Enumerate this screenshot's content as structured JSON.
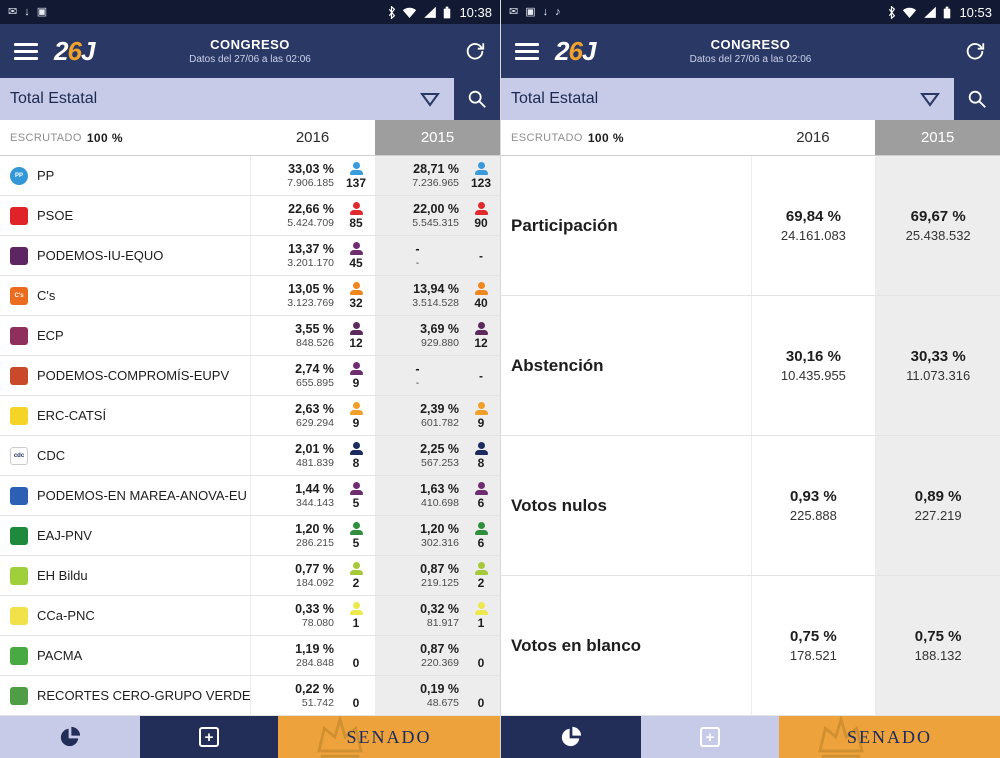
{
  "colors": {
    "statusbar": "#121a33",
    "appbar": "#2a3865",
    "lavender": "#c7cbe8",
    "header_2015": "#9e9e9e",
    "col_2015_bg": "#ededed",
    "senado_orange": "#eda23b",
    "nav_navy": "#222e57"
  },
  "left": {
    "statusbar": {
      "time": "10:38",
      "left_icons": [
        "message-icon",
        "download-icon",
        "screenshot-icon"
      ],
      "right_icons": [
        "bluetooth-icon",
        "wifi-icon",
        "signal-icon",
        "battery-icon"
      ]
    },
    "appbar": {
      "logo_2": "2",
      "logo_6": "6",
      "logo_j": "J",
      "title": "CONGRESO",
      "subtitle": "Datos del 27/06 a las 02:06"
    },
    "filter": {
      "value": "Total Estatal"
    },
    "table": {
      "escrutado_label": "ESCRUTADO",
      "escrutado_value": "100 %",
      "col_2016": "2016",
      "col_2015": "2015",
      "rows": [
        {
          "name": "PP",
          "party_icon": "pp-logo-icon",
          "logo_color": "#3398d8",
          "logo_text": "PP",
          "logo_shape": "circle",
          "seat_color": "#3a9bdc",
          "y2016": {
            "pct": "33,03 %",
            "votes": "7.906.185",
            "seats": "137"
          },
          "y2015": {
            "pct": "28,71 %",
            "votes": "7.236.965",
            "seats": "123"
          }
        },
        {
          "name": "PSOE",
          "party_icon": "psoe-logo-icon",
          "logo_color": "#e02329",
          "logo_text": "",
          "logo_shape": "square",
          "seat_color": "#e02a2e",
          "y2016": {
            "pct": "22,66 %",
            "votes": "5.424.709",
            "seats": "85"
          },
          "y2015": {
            "pct": "22,00 %",
            "votes": "5.545.315",
            "seats": "90"
          }
        },
        {
          "name": "PODEMOS-IU-EQUO",
          "party_icon": "podemos-iu-equo-logo-icon",
          "logo_color": "#5d2663",
          "logo_text": "",
          "logo_shape": "square",
          "seat_color": "#6e2d6e",
          "y2016": {
            "pct": "13,37 %",
            "votes": "3.201.170",
            "seats": "45"
          },
          "y2015": {
            "pct": "-",
            "votes": "-",
            "seats": "-"
          }
        },
        {
          "name": "C's",
          "party_icon": "ciudadanos-logo-icon",
          "logo_color": "#eb6c1e",
          "logo_text": "C's",
          "logo_shape": "square",
          "seat_color": "#f0861e",
          "y2016": {
            "pct": "13,05 %",
            "votes": "3.123.769",
            "seats": "32"
          },
          "y2015": {
            "pct": "13,94 %",
            "votes": "3.514.528",
            "seats": "40"
          }
        },
        {
          "name": "ECP",
          "party_icon": "ecp-logo-icon",
          "logo_color": "#8e2f5c",
          "logo_text": "",
          "logo_shape": "square",
          "seat_color": "#5c2a5c",
          "y2016": {
            "pct": "3,55 %",
            "votes": "848.526",
            "seats": "12"
          },
          "y2015": {
            "pct": "3,69 %",
            "votes": "929.880",
            "seats": "12"
          }
        },
        {
          "name": "PODEMOS-COMPROMÍS-EUPV",
          "party_icon": "podemos-compromis-eupv-logo-icon",
          "logo_color": "#c94a2a",
          "logo_text": "",
          "logo_shape": "square",
          "seat_color": "#6e2d6e",
          "y2016": {
            "pct": "2,74 %",
            "votes": "655.895",
            "seats": "9"
          },
          "y2015": {
            "pct": "-",
            "votes": "-",
            "seats": "-"
          }
        },
        {
          "name": "ERC-CATSÍ",
          "party_icon": "erc-catsi-logo-icon",
          "logo_color": "#f5d428",
          "logo_text": "",
          "logo_shape": "square",
          "seat_color": "#f0a028",
          "y2016": {
            "pct": "2,63 %",
            "votes": "629.294",
            "seats": "9"
          },
          "y2015": {
            "pct": "2,39 %",
            "votes": "601.782",
            "seats": "9"
          }
        },
        {
          "name": "CDC",
          "party_icon": "cdc-logo-icon",
          "logo_color": "#ffffff",
          "logo_text": "cdc",
          "logo_text_color": "#1b2b5e",
          "logo_border": "#cccccc",
          "logo_shape": "square",
          "seat_color": "#1b2b5e",
          "y2016": {
            "pct": "2,01 %",
            "votes": "481.839",
            "seats": "8"
          },
          "y2015": {
            "pct": "2,25 %",
            "votes": "567.253",
            "seats": "8"
          }
        },
        {
          "name": "PODEMOS-EN MAREA-ANOVA-EU",
          "party_icon": "podemos-en-marea-anova-eu-logo-icon",
          "logo_color": "#2d5fb5",
          "logo_text": "",
          "logo_shape": "square",
          "seat_color": "#6e2d6e",
          "y2016": {
            "pct": "1,44 %",
            "votes": "344.143",
            "seats": "5"
          },
          "y2015": {
            "pct": "1,63 %",
            "votes": "410.698",
            "seats": "6"
          }
        },
        {
          "name": "EAJ-PNV",
          "party_icon": "eaj-pnv-logo-icon",
          "logo_color": "#1f8a3b",
          "logo_text": "",
          "logo_shape": "square",
          "seat_color": "#2f8f3c",
          "y2016": {
            "pct": "1,20 %",
            "votes": "286.215",
            "seats": "5"
          },
          "y2015": {
            "pct": "1,20 %",
            "votes": "302.316",
            "seats": "6"
          }
        },
        {
          "name": "EH Bildu",
          "party_icon": "eh-bildu-logo-icon",
          "logo_color": "#9fcf3a",
          "logo_text": "",
          "logo_shape": "square",
          "seat_color": "#a6c93a",
          "y2016": {
            "pct": "0,77 %",
            "votes": "184.092",
            "seats": "2"
          },
          "y2015": {
            "pct": "0,87 %",
            "votes": "219.125",
            "seats": "2"
          }
        },
        {
          "name": "CCa-PNC",
          "party_icon": "cca-pnc-logo-icon",
          "logo_color": "#f2e24a",
          "logo_text": "",
          "logo_shape": "square",
          "seat_color": "#ece84e",
          "y2016": {
            "pct": "0,33 %",
            "votes": "78.080",
            "seats": "1"
          },
          "y2015": {
            "pct": "0,32 %",
            "votes": "81.917",
            "seats": "1"
          }
        },
        {
          "name": "PACMA",
          "party_icon": "pacma-logo-icon",
          "logo_color": "#49a942",
          "logo_text": "",
          "logo_shape": "square",
          "seat_color": "#999999",
          "y2016": {
            "pct": "1,19 %",
            "votes": "284.848",
            "seats": "0"
          },
          "y2015": {
            "pct": "0,87 %",
            "votes": "220.369",
            "seats": "0"
          }
        },
        {
          "name": "RECORTES CERO-GRUPO VERDE",
          "party_icon": "recortes-cero-grupo-verde-logo-icon",
          "logo_color": "#4f9e45",
          "logo_text": "",
          "logo_shape": "square",
          "seat_color": "#999999",
          "y2016": {
            "pct": "0,22 %",
            "votes": "51.742",
            "seats": "0"
          },
          "y2015": {
            "pct": "0,19 %",
            "votes": "48.675",
            "seats": "0"
          }
        }
      ]
    },
    "bottomnav": {
      "senado": "SENADO",
      "active": "pie"
    }
  },
  "right": {
    "statusbar": {
      "time": "10:53",
      "left_icons": [
        "message-icon",
        "screenshot-icon",
        "download-icon",
        "music-icon"
      ],
      "right_icons": [
        "bluetooth-icon",
        "wifi-icon",
        "signal-icon",
        "battery-icon"
      ]
    },
    "appbar": {
      "logo_2": "2",
      "logo_6": "6",
      "logo_j": "J",
      "title": "CONGRESO",
      "subtitle": "Datos del 27/06 a las 02:06"
    },
    "filter": {
      "value": "Total Estatal"
    },
    "table": {
      "escrutado_label": "ESCRUTADO",
      "escrutado_value": "100 %",
      "col_2016": "2016",
      "col_2015": "2015",
      "stat_rows": [
        {
          "label": "Participación",
          "y2016": {
            "pct": "69,84 %",
            "votes": "24.161.083"
          },
          "y2015": {
            "pct": "69,67 %",
            "votes": "25.438.532"
          }
        },
        {
          "label": "Abstención",
          "y2016": {
            "pct": "30,16 %",
            "votes": "10.435.955"
          },
          "y2015": {
            "pct": "30,33 %",
            "votes": "11.073.316"
          }
        },
        {
          "label": "Votos nulos",
          "y2016": {
            "pct": "0,93 %",
            "votes": "225.888"
          },
          "y2015": {
            "pct": "0,89 %",
            "votes": "227.219"
          }
        },
        {
          "label": "Votos en blanco",
          "y2016": {
            "pct": "0,75 %",
            "votes": "178.521"
          },
          "y2015": {
            "pct": "0,75 %",
            "votes": "188.132"
          }
        }
      ]
    },
    "bottomnav": {
      "senado": "SENADO",
      "active": "plus"
    }
  }
}
